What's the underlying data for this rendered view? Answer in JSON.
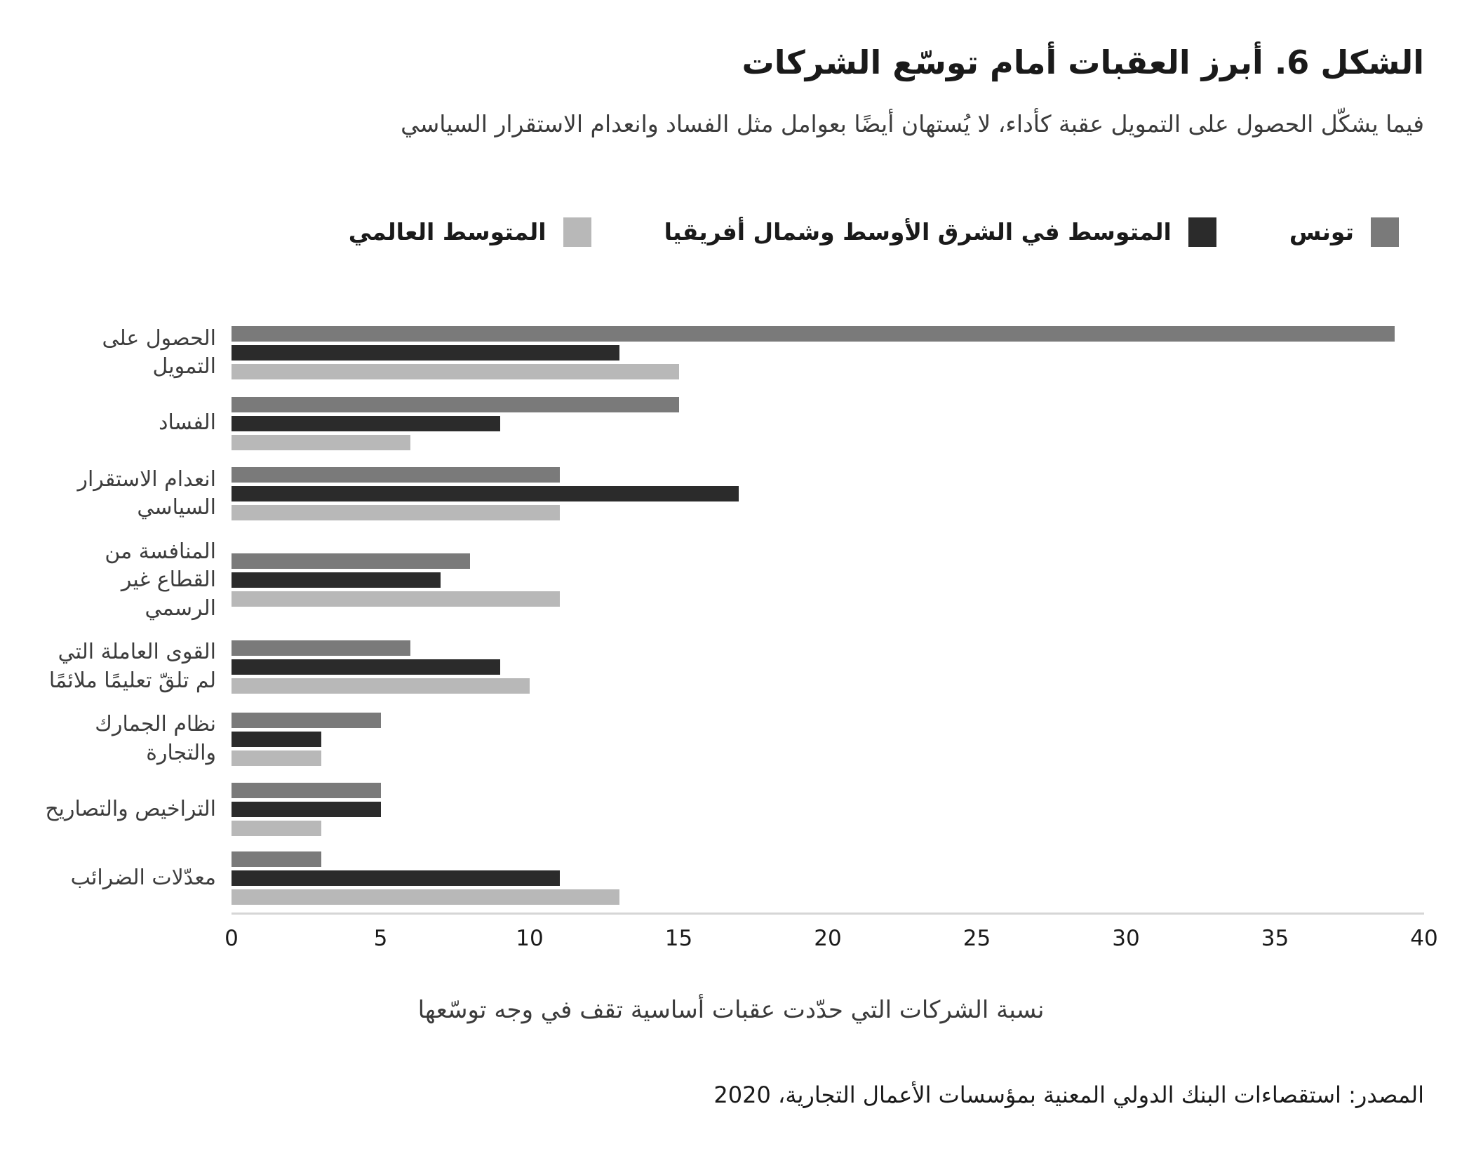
{
  "figure": {
    "title": "الشكل 6. أبرز العقبات أمام توسّع الشركات",
    "subtitle": "فيما يشكّل الحصول على التمويل عقبة كأداء، لا يُستهان أيضًا بعوامل مثل الفساد وانعدام الاستقرار السياسي",
    "xaxis_label": "نسبة الشركات التي حدّدت عقبات أساسية تقف في وجه توسّعها",
    "source": "المصدر: استقصاءات البنك الدولي المعنية بمؤسسات الأعمال التجارية، 2020"
  },
  "chart_data": {
    "type": "bar",
    "orientation": "horizontal",
    "title": "الشكل 6. أبرز العقبات أمام توسّع الشركات",
    "xlabel": "نسبة الشركات التي حدّدت عقبات أساسية تقف في وجه توسّعها",
    "ylabel": "",
    "xlim": [
      0,
      40
    ],
    "xticks": [
      0,
      5,
      10,
      15,
      20,
      25,
      30,
      35,
      40
    ],
    "grid": false,
    "legend_position": "top",
    "categories": [
      "الحصول على التمويل",
      "الفساد",
      "انعدام الاستقرار السياسي",
      "المنافسة من القطاع غير الرسمي",
      "القوى العاملة التي لم تلقّ تعليمًا ملائمًا",
      "نظام الجمارك والتجارة",
      "التراخيص والتصاريح",
      "معدّلات الضرائب"
    ],
    "series": [
      {
        "key": "tunisia",
        "name": "تونس",
        "color": "#7a7a7a",
        "values": [
          39,
          15,
          11,
          8,
          6,
          5,
          5,
          3
        ]
      },
      {
        "key": "mena-average",
        "name": "المتوسط في الشرق الأوسط وشمال أفريقيا",
        "color": "#2b2b2b",
        "values": [
          13,
          9,
          17,
          7,
          9,
          3,
          5,
          11
        ]
      },
      {
        "key": "global-average",
        "name": "المتوسط العالمي",
        "color": "#b8b8b8",
        "values": [
          15,
          6,
          11,
          11,
          10,
          3,
          3,
          13
        ]
      }
    ]
  }
}
